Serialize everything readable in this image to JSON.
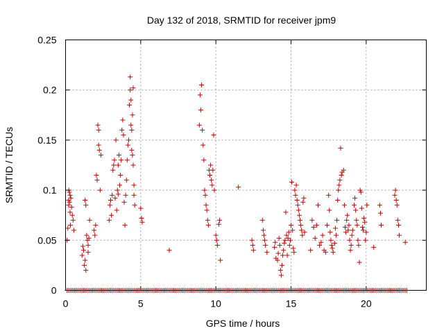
{
  "chart_data": {
    "type": "scatter",
    "title": "Day 132 of 2018, SRMTID for receiver jpm9",
    "xlabel": "GPS time / hours",
    "ylabel": "SRMTID / TECUs",
    "xlim": [
      0,
      24
    ],
    "ylim": [
      0,
      0.25
    ],
    "xticks": [
      0,
      5,
      10,
      15,
      20
    ],
    "xtick_labels": [
      "0",
      "5",
      "10",
      "15",
      "20"
    ],
    "yticks": [
      0,
      0.05,
      0.1,
      0.15,
      0.2,
      0.25
    ],
    "ytick_labels": [
      "0",
      "0.05",
      "0.1",
      "0.15",
      "0.2",
      "0.25"
    ],
    "grid": true,
    "marker": "+",
    "color": "#cc0000",
    "series": [
      {
        "name": "SRMTID",
        "points": [
          [
            0.1,
            0.05
          ],
          [
            0.15,
            0.062
          ],
          [
            0.2,
            0.085
          ],
          [
            0.2,
            0.09
          ],
          [
            0.22,
            0.1
          ],
          [
            0.25,
            0.098
          ],
          [
            0.27,
            0.088
          ],
          [
            0.3,
            0.095
          ],
          [
            0.3,
            0.078
          ],
          [
            0.32,
            0.065
          ],
          [
            0.35,
            0.092
          ],
          [
            0.4,
            0.083
          ],
          [
            0.45,
            0.075
          ],
          [
            0.5,
            0.07
          ],
          [
            0.55,
            0.06
          ],
          [
            1.1,
            0.035
          ],
          [
            1.15,
            0.044
          ],
          [
            1.2,
            0.04
          ],
          [
            1.25,
            0.025
          ],
          [
            1.3,
            0.03
          ],
          [
            1.3,
            0.09
          ],
          [
            1.35,
            0.085
          ],
          [
            1.35,
            0.02
          ],
          [
            1.4,
            0.055
          ],
          [
            1.45,
            0.05
          ],
          [
            1.5,
            0.045
          ],
          [
            1.5,
            0.038
          ],
          [
            1.55,
            0.052
          ],
          [
            1.6,
            0.07
          ],
          [
            1.9,
            0.06
          ],
          [
            1.95,
            0.055
          ],
          [
            2.0,
            0.065
          ],
          [
            2.05,
            0.115
          ],
          [
            2.1,
            0.11
          ],
          [
            2.15,
            0.165
          ],
          [
            2.2,
            0.16
          ],
          [
            2.2,
            0.145
          ],
          [
            2.25,
            0.14
          ],
          [
            2.3,
            0.1
          ],
          [
            2.35,
            0.135
          ],
          [
            2.9,
            0.07
          ],
          [
            2.95,
            0.085
          ],
          [
            3.0,
            0.09
          ],
          [
            3.05,
            0.075
          ],
          [
            3.1,
            0.095
          ],
          [
            3.15,
            0.12
          ],
          [
            3.2,
            0.125
          ],
          [
            3.25,
            0.13
          ],
          [
            3.3,
            0.092
          ],
          [
            3.35,
            0.15
          ],
          [
            3.4,
            0.08
          ],
          [
            3.45,
            0.1
          ],
          [
            3.5,
            0.096
          ],
          [
            3.5,
            0.125
          ],
          [
            3.55,
            0.135
          ],
          [
            3.6,
            0.105
          ],
          [
            3.65,
            0.115
          ],
          [
            3.7,
            0.13
          ],
          [
            3.75,
            0.16
          ],
          [
            3.8,
            0.17
          ],
          [
            3.85,
            0.155
          ],
          [
            3.9,
            0.088
          ],
          [
            3.95,
            0.065
          ],
          [
            4.0,
            0.095
          ],
          [
            4.05,
            0.11
          ],
          [
            4.1,
            0.13
          ],
          [
            4.15,
            0.145
          ],
          [
            4.2,
            0.15
          ],
          [
            4.25,
            0.185
          ],
          [
            4.3,
            0.213
          ],
          [
            4.3,
            0.2
          ],
          [
            4.35,
            0.19
          ],
          [
            4.35,
            0.165
          ],
          [
            4.4,
            0.16
          ],
          [
            4.4,
            0.14
          ],
          [
            4.45,
            0.135
          ],
          [
            4.45,
            0.175
          ],
          [
            4.5,
            0.202
          ],
          [
            4.5,
            0.125
          ],
          [
            4.55,
            0.105
          ],
          [
            4.55,
            0.095
          ],
          [
            4.6,
            0.085
          ],
          [
            5.0,
            0.082
          ],
          [
            5.05,
            0.072
          ],
          [
            5.1,
            0.068
          ],
          [
            6.9,
            0.04
          ],
          [
            8.9,
            0.165
          ],
          [
            8.95,
            0.195
          ],
          [
            9.0,
            0.18
          ],
          [
            9.05,
            0.205
          ],
          [
            9.1,
            0.16
          ],
          [
            9.15,
            0.145
          ],
          [
            9.2,
            0.13
          ],
          [
            9.25,
            0.1
          ],
          [
            9.3,
            0.095
          ],
          [
            9.35,
            0.085
          ],
          [
            9.4,
            0.08
          ],
          [
            9.45,
            0.07
          ],
          [
            9.5,
            0.065
          ],
          [
            9.55,
            0.12
          ],
          [
            9.6,
            0.115
          ],
          [
            9.65,
            0.125
          ],
          [
            9.7,
            0.11
          ],
          [
            9.75,
            0.105
          ],
          [
            9.8,
            0.12
          ],
          [
            9.85,
            0.155
          ],
          [
            9.9,
            0.1
          ],
          [
            10.0,
            0.055
          ],
          [
            10.05,
            0.05
          ],
          [
            10.1,
            0.045
          ],
          [
            10.2,
            0.066
          ],
          [
            10.25,
            0.07
          ],
          [
            10.3,
            0.03
          ],
          [
            11.5,
            0.103
          ],
          [
            12.4,
            0.05
          ],
          [
            12.45,
            0.045
          ],
          [
            12.5,
            0.04
          ],
          [
            13.1,
            0.07
          ],
          [
            13.15,
            0.06
          ],
          [
            13.2,
            0.055
          ],
          [
            13.25,
            0.05
          ],
          [
            13.3,
            0.045
          ],
          [
            13.4,
            0.038
          ],
          [
            13.9,
            0.043
          ],
          [
            13.95,
            0.048
          ],
          [
            14.0,
            0.032
          ],
          [
            14.1,
            0.03
          ],
          [
            14.15,
            0.037
          ],
          [
            14.2,
            0.052
          ],
          [
            14.25,
            0.045
          ],
          [
            14.3,
            0.02
          ],
          [
            14.35,
            0.015
          ],
          [
            14.4,
            0.025
          ],
          [
            14.45,
            0.035
          ],
          [
            14.5,
            0.04
          ],
          [
            14.55,
            0.047
          ],
          [
            14.6,
            0.05
          ],
          [
            14.65,
            0.078
          ],
          [
            14.7,
            0.055
          ],
          [
            14.75,
            0.035
          ],
          [
            14.8,
            0.052
          ],
          [
            14.85,
            0.058
          ],
          [
            14.9,
            0.045
          ],
          [
            14.95,
            0.05
          ],
          [
            15.0,
            0.065
          ],
          [
            15.05,
            0.108
          ],
          [
            15.1,
            0.06
          ],
          [
            15.15,
            0.042
          ],
          [
            15.2,
            0.038
          ],
          [
            15.25,
            0.1
          ],
          [
            15.3,
            0.095
          ],
          [
            15.35,
            0.105
          ],
          [
            15.4,
            0.09
          ],
          [
            15.45,
            0.085
          ],
          [
            15.5,
            0.08
          ],
          [
            15.55,
            0.075
          ],
          [
            15.6,
            0.07
          ],
          [
            15.65,
            0.065
          ],
          [
            15.7,
            0.06
          ],
          [
            15.75,
            0.055
          ],
          [
            15.8,
            0.088
          ],
          [
            15.85,
            0.092
          ],
          [
            15.9,
            0.058
          ],
          [
            16.3,
            0.04
          ],
          [
            16.4,
            0.07
          ],
          [
            16.5,
            0.063
          ],
          [
            16.6,
            0.052
          ],
          [
            16.7,
            0.065
          ],
          [
            16.8,
            0.085
          ],
          [
            16.9,
            0.045
          ],
          [
            17.0,
            0.048
          ],
          [
            17.1,
            0.055
          ],
          [
            17.2,
            0.04
          ],
          [
            17.3,
            0.038
          ],
          [
            17.4,
            0.065
          ],
          [
            17.5,
            0.095
          ],
          [
            17.55,
            0.08
          ],
          [
            17.6,
            0.058
          ],
          [
            17.65,
            0.05
          ],
          [
            17.7,
            0.045
          ],
          [
            17.75,
            0.042
          ],
          [
            17.8,
            0.038
          ],
          [
            17.9,
            0.047
          ],
          [
            17.95,
            0.062
          ],
          [
            18.0,
            0.055
          ],
          [
            18.05,
            0.07
          ],
          [
            18.1,
            0.09
          ],
          [
            18.15,
            0.1
          ],
          [
            18.2,
            0.105
          ],
          [
            18.25,
            0.11
          ],
          [
            18.3,
            0.142
          ],
          [
            18.35,
            0.115
          ],
          [
            18.4,
            0.118
          ],
          [
            18.5,
            0.12
          ],
          [
            18.55,
            0.085
          ],
          [
            18.6,
            0.063
          ],
          [
            18.65,
            0.058
          ],
          [
            18.7,
            0.07
          ],
          [
            18.75,
            0.075
          ],
          [
            18.8,
            0.06
          ],
          [
            18.85,
            0.065
          ],
          [
            18.9,
            0.05
          ],
          [
            18.95,
            0.04
          ],
          [
            19.0,
            0.045
          ],
          [
            19.05,
            0.055
          ],
          [
            19.1,
            0.06
          ],
          [
            19.2,
            0.085
          ],
          [
            19.25,
            0.092
          ],
          [
            19.3,
            0.08
          ],
          [
            19.35,
            0.07
          ],
          [
            19.4,
            0.065
          ],
          [
            19.45,
            0.05
          ],
          [
            19.5,
            0.045
          ],
          [
            19.55,
            0.028
          ],
          [
            19.6,
            0.1
          ],
          [
            19.65,
            0.098
          ],
          [
            19.7,
            0.082
          ],
          [
            19.75,
            0.063
          ],
          [
            19.8,
            0.06
          ],
          [
            19.85,
            0.072
          ],
          [
            19.9,
            0.068
          ],
          [
            19.95,
            0.05
          ],
          [
            20.0,
            0.058
          ],
          [
            20.05,
            0.085
          ],
          [
            20.5,
            0.043
          ],
          [
            20.9,
            0.085
          ],
          [
            20.95,
            0.077
          ],
          [
            21.0,
            0.065
          ],
          [
            21.9,
            0.095
          ],
          [
            21.95,
            0.1
          ],
          [
            22.0,
            0.09
          ],
          [
            22.05,
            0.085
          ],
          [
            22.1,
            0.07
          ],
          [
            22.15,
            0.065
          ],
          [
            22.2,
            0.055
          ],
          [
            22.6,
            0.048
          ]
        ]
      }
    ],
    "zero_band": {
      "from": 0.1,
      "to": 22.7,
      "step": 0.1,
      "value": 0
    }
  }
}
